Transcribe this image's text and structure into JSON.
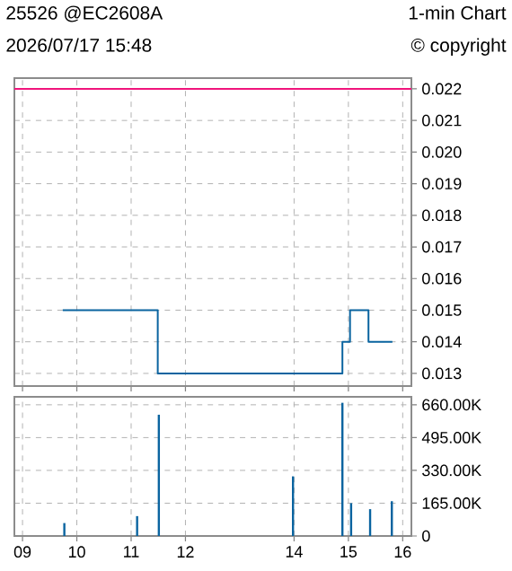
{
  "chart_data": [
    {
      "type": "step",
      "title": "25526 @EC2608A",
      "subtitle": "2026/07/17 15:48",
      "annotations": [
        "1-min Chart",
        "© copyright"
      ],
      "x": [
        9.74,
        11.49,
        14.89,
        15.03,
        15.37,
        15.81
      ],
      "series": [
        {
          "color": "#0a64a0",
          "values": [
            0.015,
            0.013,
            0.014,
            0.015,
            0.014,
            0.014
          ]
        }
      ],
      "ref_lines": [
        {
          "axis": "y",
          "value": 0.022,
          "color": "#f0147c"
        }
      ],
      "xlim": [
        8.85,
        16.16
      ],
      "xticks": [
        9,
        10,
        11,
        12,
        14,
        15,
        16
      ],
      "ylim": [
        0.0126,
        0.02234
      ],
      "yticks": [
        0.013,
        0.014,
        0.015,
        0.016,
        0.017,
        0.018,
        0.019,
        {
          "value": 0.02,
          "label": "0.020"
        },
        0.021,
        0.022
      ],
      "grid": true,
      "tick_labels": "y"
    },
    {
      "type": "bar",
      "x": [
        9.77,
        11.11,
        11.51,
        13.98,
        14.89,
        15.05,
        15.4,
        15.8
      ],
      "series": [
        {
          "color": "#0a64a0",
          "values": [
            65000,
            100000,
            610000,
            300000,
            670000,
            165000,
            135000,
            175000
          ]
        }
      ],
      "xlim": [
        8.85,
        16.16
      ],
      "xticks": [
        {
          "value": 9,
          "label": "09"
        },
        10,
        11,
        12,
        14,
        15,
        16
      ],
      "ylim": [
        0,
        700000
      ],
      "yticks": [
        0,
        {
          "value": 165000,
          "label": "165.00K"
        },
        {
          "value": 330000,
          "label": "330.00K"
        },
        {
          "value": 495000,
          "label": "495.00K"
        },
        {
          "value": 660000,
          "label": "660.00K"
        }
      ],
      "grid": true
    }
  ]
}
